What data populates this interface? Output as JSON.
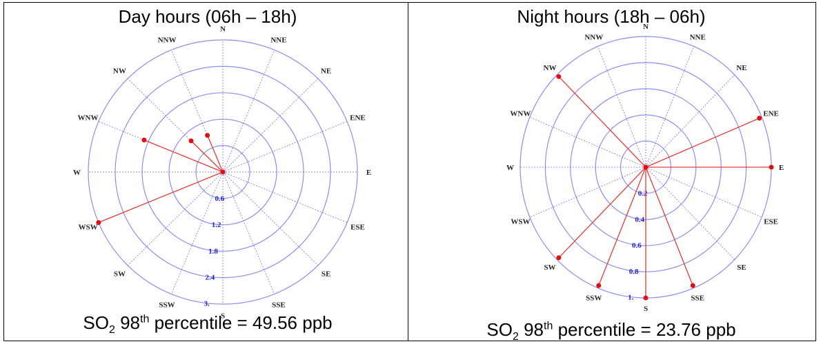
{
  "chart_data": [
    {
      "type": "polar",
      "title": "Day hours (06h – 18h)",
      "directions": [
        "N",
        "NNE",
        "NE",
        "ENE",
        "E",
        "ESE",
        "SE",
        "SSE",
        "S",
        "SSW",
        "SW",
        "WSW",
        "W",
        "WNW",
        "NW",
        "NNW"
      ],
      "rlim": [
        0,
        3
      ],
      "ring_labels": [
        "0.6",
        "1.2",
        "1.8",
        "2.4",
        "3."
      ],
      "series": [
        {
          "points": [
            {
              "direction": "WSW",
              "value": 3.0
            },
            {
              "direction": "WNW",
              "value": 1.9
            },
            {
              "direction": "NW",
              "value": 1.0
            },
            {
              "direction": "NNW",
              "value": 0.9
            }
          ]
        }
      ],
      "caption": {
        "species": "SO",
        "sub": "2",
        "mid": " 98",
        "sup": "th",
        "text": " percentile = 49.56 ppb"
      }
    },
    {
      "type": "polar",
      "title": "Night hours (18h – 06h)",
      "directions": [
        "N",
        "NNE",
        "NE",
        "ENE",
        "E",
        "ESE",
        "SE",
        "SSE",
        "S",
        "SSW",
        "SW",
        "WSW",
        "W",
        "WNW",
        "NW",
        "NNW"
      ],
      "rlim": [
        0,
        1
      ],
      "ring_labels": [
        "0.2",
        "0.4",
        "0.6",
        "0.8",
        "1."
      ],
      "series": [
        {
          "points": [
            {
              "direction": "NW",
              "value": 0.98
            },
            {
              "direction": "ENE",
              "value": 0.98
            },
            {
              "direction": "E",
              "value": 1.0
            },
            {
              "direction": "SSE",
              "value": 0.98
            },
            {
              "direction": "S",
              "value": 1.0
            },
            {
              "direction": "SSW",
              "value": 0.98
            },
            {
              "direction": "SW",
              "value": 0.98
            }
          ]
        }
      ],
      "caption": {
        "species": "SO",
        "sub": "2",
        "mid": " 98",
        "sup": "th",
        "text": " percentile = 23.76 ppb"
      }
    }
  ],
  "colors": {
    "grid": "#8c8cf0",
    "spoke": "#6f6fe8",
    "line": "#e53a3a",
    "point": "#e01010",
    "tick": "#1f1fd6"
  }
}
